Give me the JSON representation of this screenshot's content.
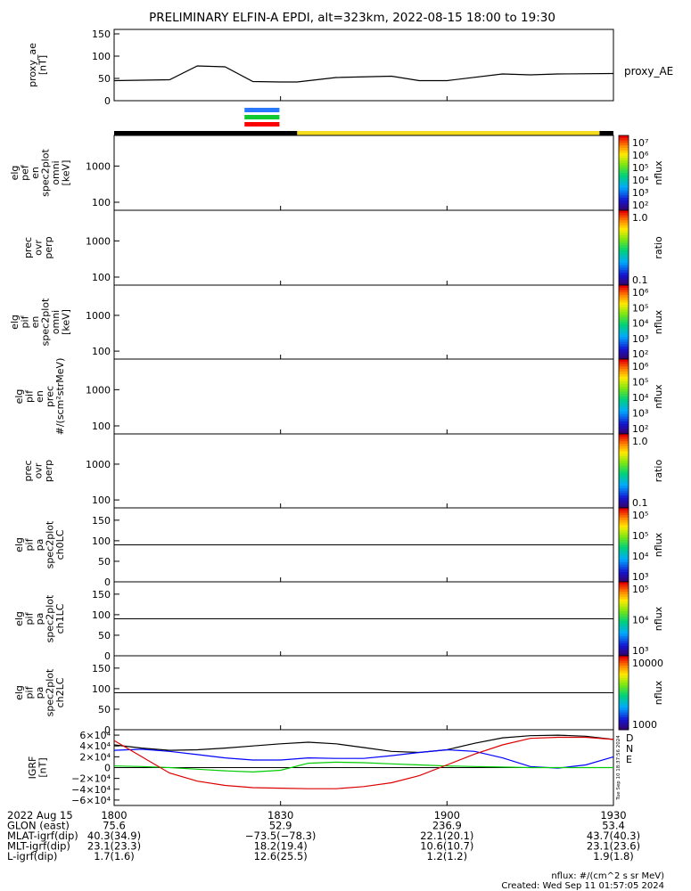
{
  "title": "PRELIMINARY ELFIN-A EPDI, alt=323km, 2022-08-15 18:00 to 19:30",
  "chart_data": [
    {
      "type": "line",
      "ylabel": [
        "proxy_ae",
        "[nT]"
      ],
      "legend": "proxy_AE",
      "ylim": [
        0,
        160
      ],
      "yticks": [
        "150",
        "100",
        "50",
        "0"
      ],
      "ytick_values": [
        150,
        100,
        50,
        0
      ],
      "x_minutes": [
        0,
        10,
        15,
        20,
        25,
        30,
        33,
        40,
        50,
        55,
        60,
        70,
        75,
        80,
        90
      ],
      "y": [
        45,
        47,
        78,
        76,
        43,
        42,
        42,
        52,
        55,
        45,
        45,
        60,
        58,
        60,
        61
      ],
      "color": "#000000"
    },
    {
      "type": "bar",
      "name": "data-quality indicator",
      "segments": [
        {
          "start_min": 0,
          "end_min": 33,
          "color": "#000000"
        },
        {
          "start_min": 33,
          "end_min": 87.5,
          "color": "#f5dc1e"
        },
        {
          "start_min": 87.5,
          "end_min": 90,
          "color": "#000000"
        }
      ],
      "markers": [
        {
          "start_min": 23.5,
          "end_min": 29.8,
          "color": "#2a78ff"
        },
        {
          "start_min": 23.5,
          "end_min": 29.8,
          "color": "#10c830"
        },
        {
          "start_min": 23.5,
          "end_min": 29.8,
          "color": "#ff0000"
        }
      ]
    },
    {
      "type": "heatmap",
      "ylabel": [
        "elg",
        "pef",
        "en",
        "spec2plot",
        "omni",
        "[keV]"
      ],
      "yscale": "log",
      "ylim": [
        60,
        7000
      ],
      "yticks": [
        "1000",
        "100"
      ],
      "ytick_values": [
        1000,
        100
      ],
      "x_range_min": [
        23.5,
        30
      ],
      "peak_min": 26,
      "zlabel": "nflux",
      "zticks": [
        "10⁷",
        "10⁶",
        "10⁵",
        "10⁴",
        "10³",
        "10²"
      ],
      "colorbar": "rainbow"
    },
    {
      "type": "heatmap",
      "ylabel": [
        "prec",
        "ovr",
        "perp"
      ],
      "yscale": "log",
      "ylim": [
        60,
        7000
      ],
      "yticks": [
        "1000",
        "100"
      ],
      "ytick_values": [
        1000,
        100
      ],
      "x_range_min": [
        25,
        28.5
      ],
      "peak_min": 27,
      "zlabel": "ratio",
      "zticks": [
        "1.0",
        "0.1"
      ],
      "colorbar": "rainbow"
    },
    {
      "type": "heatmap",
      "ylabel": [
        "elg",
        "pif",
        "en",
        "spec2plot",
        "omni",
        "[keV]"
      ],
      "yscale": "log",
      "ylim": [
        60,
        7000
      ],
      "yticks": [
        "1000",
        "100"
      ],
      "ytick_values": [
        1000,
        100
      ],
      "x_range_min": [
        24.5,
        30
      ],
      "peak_min": 27,
      "zlabel": "nflux",
      "zticks": [
        "10⁶",
        "10⁵",
        "10⁴",
        "10³",
        "10²"
      ],
      "colorbar": "rainbow"
    },
    {
      "type": "heatmap",
      "ylabel": [
        "elg",
        "pif",
        "en",
        "prec",
        "#/(scm²strMeV)"
      ],
      "yscale": "log",
      "ylim": [
        60,
        7000
      ],
      "yticks": [
        "1000",
        "100"
      ],
      "ytick_values": [
        1000,
        100
      ],
      "x_range_min": [
        25.5,
        28.5
      ],
      "peak_min": 27,
      "zlabel": "nflux",
      "zticks": [
        "10⁶",
        "10⁵",
        "10⁴",
        "10³",
        "10²"
      ],
      "colorbar": "rainbow"
    },
    {
      "type": "heatmap",
      "ylabel": [
        "prec",
        "ovr",
        "perp"
      ],
      "yscale": "log",
      "ylim": [
        60,
        7000
      ],
      "yticks": [
        "1000",
        "100"
      ],
      "ytick_values": [
        1000,
        100
      ],
      "x_range_min": [
        26,
        28.5
      ],
      "peak_min": 27.3,
      "zlabel": "ratio",
      "zticks": [
        "1.0",
        "0.1"
      ],
      "colorbar": "rainbow"
    },
    {
      "type": "heatmap",
      "ylabel": [
        "elg",
        "pif",
        "pa",
        "spec2plot",
        "ch0LC"
      ],
      "ylim": [
        0,
        180
      ],
      "yticks": [
        "150",
        "100",
        "50",
        "0"
      ],
      "ytick_values": [
        150,
        100,
        50,
        0
      ],
      "hline": 90,
      "x_range_min": [
        24.5,
        29.5
      ],
      "peak_min": 27,
      "zlabel": "nflux",
      "zticks": [
        "10⁵",
        "10⁵",
        "10⁴",
        "10³"
      ],
      "colorbar": "rainbow"
    },
    {
      "type": "heatmap",
      "ylabel": [
        "elg",
        "pif",
        "pa",
        "spec2plot",
        "ch1LC"
      ],
      "ylim": [
        0,
        180
      ],
      "yticks": [
        "150",
        "100",
        "50",
        "0"
      ],
      "ytick_values": [
        150,
        100,
        50,
        0
      ],
      "hline": 90,
      "x_range_min": [
        25.5,
        29.5
      ],
      "peak_min": 27,
      "zlabel": "nflux",
      "zticks": [
        "10⁵",
        "10⁴",
        "10³"
      ],
      "colorbar": "rainbow"
    },
    {
      "type": "heatmap",
      "ylabel": [
        "elg",
        "pif",
        "pa",
        "spec2plot",
        "ch2LC"
      ],
      "ylim": [
        0,
        180
      ],
      "yticks": [
        "150",
        "100",
        "50",
        "0"
      ],
      "ytick_values": [
        150,
        100,
        50,
        0
      ],
      "hline": 90,
      "x_range_min": [
        25.5,
        29.5
      ],
      "peak_min": 27.5,
      "zlabel": "nflux",
      "zticks": [
        "10000",
        "1000"
      ],
      "colorbar": "rainbow"
    },
    {
      "type": "line",
      "ylabel": [
        "IGRF",
        "[nT]"
      ],
      "ylim": [
        -70000,
        70000
      ],
      "yticks": [
        "6×10⁴",
        "4×10⁴",
        "2×10⁴",
        "0",
        "−2×10⁴",
        "−4×10⁴",
        "−6×10⁴"
      ],
      "ytick_values": [
        60000,
        40000,
        20000,
        0,
        -20000,
        -40000,
        -60000
      ],
      "hline": 0,
      "x_minutes": [
        0,
        5,
        10,
        15,
        20,
        25,
        30,
        35,
        40,
        45,
        50,
        55,
        60,
        65,
        70,
        75,
        80,
        85,
        90
      ],
      "series": [
        {
          "name": "D",
          "color": "#000000",
          "values": [
            42000,
            36000,
            32000,
            33000,
            36000,
            40000,
            44000,
            47000,
            44000,
            37000,
            30000,
            28000,
            33000,
            45000,
            55000,
            59000,
            60000,
            58000,
            52000
          ]
        },
        {
          "name": "N",
          "color": "#0000ff",
          "values": [
            32000,
            34000,
            30000,
            24000,
            18000,
            14000,
            14000,
            18000,
            17000,
            17000,
            22000,
            28000,
            33000,
            30000,
            18000,
            2000,
            -1000,
            5000,
            20000
          ]
        },
        {
          "name": "E",
          "color": "#00cc00",
          "values": [
            3000,
            2000,
            0,
            -3000,
            -6000,
            -8000,
            -5000,
            8000,
            10000,
            9000,
            7000,
            5000,
            3000,
            2000,
            1000,
            0,
            0,
            0,
            0
          ]
        },
        {
          "name": "",
          "color": "#dd0000",
          "values": [
            50000,
            20000,
            -10000,
            -25000,
            -33000,
            -37000,
            -38000,
            -39000,
            -39000,
            -35000,
            -28000,
            -15000,
            5000,
            25000,
            42000,
            54000,
            56000,
            56000,
            52000
          ]
        }
      ],
      "side_text": "Tue Sep 10 18:37:56 2024"
    }
  ],
  "xaxis": {
    "rows": [
      {
        "label": "2022 Aug 15",
        "values": [
          "1800",
          "1830",
          "1900",
          "1930"
        ]
      },
      {
        "label": "GLON (east)",
        "values": [
          "75.6",
          "52.9",
          "236.9",
          "53.4"
        ]
      },
      {
        "label": "MLAT-igrf(dip)",
        "values": [
          "40.3(34.9)",
          "−73.5(−78.3)",
          "22.1(20.1)",
          "43.7(40.3)"
        ]
      },
      {
        "label": "MLT-igrf(dip)",
        "values": [
          "23.1(23.3)",
          "18.2(19.4)",
          "10.6(10.7)",
          "23.1(23.6)"
        ]
      },
      {
        "label": "L-igrf(dip)",
        "values": [
          "1.7(1.6)",
          "12.6(25.5)",
          "1.2(1.2)",
          "1.9(1.8)"
        ]
      }
    ],
    "tick_minutes": [
      0,
      30,
      60,
      90
    ]
  },
  "footer": {
    "units": "nflux: #/(cm^2 s sr MeV)",
    "created": "Created: Wed Sep 11 01:57:05 2024"
  }
}
